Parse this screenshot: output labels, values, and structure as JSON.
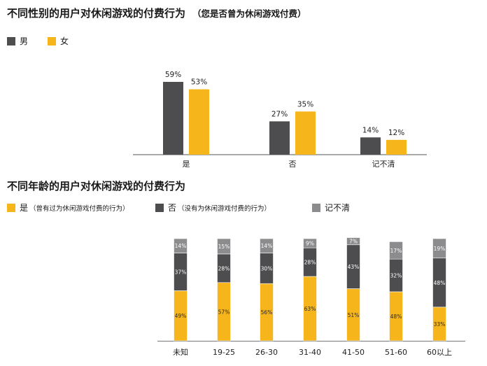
{
  "colors": {
    "male": "#4d4d4f",
    "female": "#f7b51c",
    "yes": "#f7b51c",
    "no": "#4d4d4f",
    "unsure": "#8c8c8e"
  },
  "chart1": {
    "title": "不同性别的用户对休闲游戏的付费行为",
    "subtitle": "（您是否曾为休闲游戏付费）",
    "legend": [
      {
        "label": "男",
        "color": "#4d4d4f"
      },
      {
        "label": "女",
        "color": "#f7b51c"
      }
    ]
  },
  "chart2": {
    "title": "不同年龄的用户对休闲游戏的付费行为",
    "legend": [
      {
        "label": "是",
        "note": "（曾有过为休闲游戏付费的行为）",
        "color": "#f7b51c"
      },
      {
        "label": "否",
        "note": "（没有为休闲游戏付费的行为）",
        "color": "#4d4d4f"
      },
      {
        "label": "记不清",
        "note": "",
        "color": "#8c8c8e"
      }
    ]
  },
  "chart_data": [
    {
      "type": "bar",
      "title": "不同性别的用户对休闲游戏的付费行为",
      "subtitle": "（您是否曾为休闲游戏付费）",
      "categories": [
        "是",
        "否",
        "记不清"
      ],
      "series": [
        {
          "name": "男",
          "values": [
            59,
            27,
            14
          ],
          "labels": [
            "59%",
            "27%",
            "14%"
          ]
        },
        {
          "name": "女",
          "values": [
            53,
            35,
            12
          ],
          "labels": [
            "53%",
            "35%",
            "12%"
          ]
        }
      ],
      "ylim": [
        0,
        60
      ],
      "legend": "top-left",
      "grid": false
    },
    {
      "type": "bar",
      "stacked": true,
      "title": "不同年龄的用户对休闲游戏的付费行为",
      "categories": [
        "未知",
        "19-25",
        "26-30",
        "31-40",
        "41-50",
        "51-60",
        "60以上"
      ],
      "series": [
        {
          "name": "是",
          "values": [
            49,
            57,
            56,
            63,
            51,
            48,
            33
          ],
          "labels": [
            "49%",
            "57%",
            "56%",
            "63%",
            "51%",
            "48%",
            "33%"
          ]
        },
        {
          "name": "否",
          "values": [
            37,
            28,
            30,
            28,
            43,
            32,
            48
          ],
          "labels": [
            "37%",
            "28%",
            "30%",
            "28%",
            "43%",
            "32%",
            "48%"
          ]
        },
        {
          "name": "记不清",
          "values": [
            14,
            15,
            14,
            9,
            7,
            17,
            19
          ],
          "labels": [
            "14%",
            "15%",
            "14%",
            "9%",
            "7%",
            "17%",
            "19%"
          ]
        }
      ],
      "ylim": [
        0,
        100
      ],
      "legend": "top",
      "grid": false
    }
  ]
}
